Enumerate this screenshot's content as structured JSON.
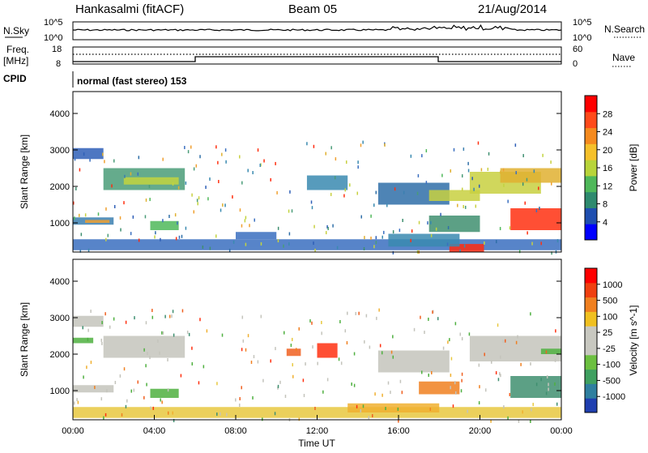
{
  "header": {
    "station": "Hankasalmi (fitACF)",
    "beam": "Beam 05",
    "date": "21/Aug/2014"
  },
  "top_panels": {
    "nsky_label": "N.Sky",
    "nsky_ticks": [
      "10^5",
      "10^0"
    ],
    "nsearch_label": "N.Search",
    "freq_label_line1": "Freq.",
    "freq_label_line2": "[MHz]",
    "freq_ticks": [
      "18",
      "8"
    ],
    "nave_ticks": [
      "60",
      "0"
    ],
    "nave_label": "Nave",
    "cpid_label": "CPID",
    "cpid_text": "normal (fast stereo) 153"
  },
  "chart_data": [
    {
      "type": "heatmap",
      "name": "power",
      "ylabel": "Slant Range [km]",
      "xlabel": "",
      "y_ticks": [
        "4000",
        "3000",
        "2000",
        "1000"
      ],
      "ylim": [
        200,
        4600
      ],
      "colorbar_label": "Power [dB]",
      "colorbar_ticks": [
        "28",
        "24",
        "20",
        "16",
        "12",
        "8",
        "4"
      ],
      "colorbar_colors": [
        "#0000ff",
        "#1f4fb0",
        "#2e8a6e",
        "#4fb85a",
        "#b8d43a",
        "#f5c02a",
        "#f58a1e",
        "#ff4a1a",
        "#ff0000"
      ],
      "bands": [
        {
          "t0": 0.0,
          "t1": 1.5,
          "r0": 2750,
          "r1": 3050,
          "color": "#2f5fb7"
        },
        {
          "t0": 1.5,
          "t1": 5.5,
          "r0": 1900,
          "r1": 2500,
          "color": "#4a9c78"
        },
        {
          "t0": 2.5,
          "t1": 5.2,
          "r0": 2050,
          "r1": 2250,
          "color": "#c2d43f"
        },
        {
          "t0": 0.0,
          "t1": 2.0,
          "r0": 950,
          "r1": 1150,
          "color": "#3b7fb0"
        },
        {
          "t0": 0.6,
          "t1": 1.8,
          "r0": 1000,
          "r1": 1080,
          "color": "#f0a030"
        },
        {
          "t0": 3.8,
          "t1": 5.2,
          "r0": 800,
          "r1": 1050,
          "color": "#4fb85a"
        },
        {
          "t0": 0.0,
          "t1": 24.0,
          "r0": 250,
          "r1": 550,
          "color": "#3a6fc0"
        },
        {
          "t0": 11.5,
          "t1": 13.5,
          "r0": 1900,
          "r1": 2300,
          "color": "#3a8ab0"
        },
        {
          "t0": 15.0,
          "t1": 18.5,
          "r0": 1500,
          "r1": 2100,
          "color": "#2f6fa8"
        },
        {
          "t0": 17.5,
          "t1": 20.0,
          "r0": 1600,
          "r1": 1900,
          "color": "#c8d040"
        },
        {
          "t0": 19.5,
          "t1": 23.0,
          "r0": 1800,
          "r1": 2400,
          "color": "#c8d040"
        },
        {
          "t0": 21.0,
          "t1": 24.0,
          "r0": 2100,
          "r1": 2500,
          "color": "#e0b030"
        },
        {
          "t0": 21.5,
          "t1": 24.0,
          "r0": 800,
          "r1": 1400,
          "color": "#ff3010"
        },
        {
          "t0": 17.5,
          "t1": 20.0,
          "r0": 750,
          "r1": 1200,
          "color": "#3f8f70"
        },
        {
          "t0": 18.5,
          "t1": 20.2,
          "r0": 200,
          "r1": 420,
          "color": "#ff2a10"
        },
        {
          "t0": 15.5,
          "t1": 19.0,
          "r0": 350,
          "r1": 700,
          "color": "#3a8ab0"
        },
        {
          "t0": 8.0,
          "t1": 10.0,
          "r0": 550,
          "r1": 750,
          "color": "#3a6fc0"
        }
      ]
    },
    {
      "type": "heatmap",
      "name": "velocity",
      "ylabel": "Slant Range [km]",
      "xlabel": "Time UT",
      "x_ticks": [
        "00:00",
        "04:00",
        "08:00",
        "12:00",
        "16:00",
        "20:00",
        "00:00"
      ],
      "y_ticks": [
        "4000",
        "3000",
        "2000",
        "1000"
      ],
      "ylim": [
        200,
        4600
      ],
      "colorbar_label": "Velocity [m s^-1]",
      "colorbar_ticks": [
        "1000",
        "500",
        "100",
        "25",
        "-25",
        "-100",
        "-500",
        "-1000"
      ],
      "colorbar_colors": [
        "#1f3fb0",
        "#2f7f9f",
        "#3fa060",
        "#6cc040",
        "#c8c8c0",
        "#c8c8c0",
        "#f0c020",
        "#f08020",
        "#f04010",
        "#ff0000"
      ],
      "bands": [
        {
          "t0": 0.0,
          "t1": 1.5,
          "r0": 2750,
          "r1": 3050,
          "color": "#c4c4bc"
        },
        {
          "t0": 1.5,
          "t1": 5.5,
          "r0": 1900,
          "r1": 2500,
          "color": "#c4c4bc"
        },
        {
          "t0": 0.0,
          "t1": 2.0,
          "r0": 950,
          "r1": 1150,
          "color": "#c4c4bc"
        },
        {
          "t0": 3.8,
          "t1": 5.2,
          "r0": 800,
          "r1": 1050,
          "color": "#4fb040"
        },
        {
          "t0": 0.0,
          "t1": 24.0,
          "r0": 250,
          "r1": 550,
          "color": "#e8c840"
        },
        {
          "t0": 12.0,
          "t1": 13.0,
          "r0": 1900,
          "r1": 2300,
          "color": "#ff3010"
        },
        {
          "t0": 10.5,
          "t1": 11.2,
          "r0": 1950,
          "r1": 2150,
          "color": "#f06020"
        },
        {
          "t0": 15.0,
          "t1": 18.5,
          "r0": 1500,
          "r1": 2100,
          "color": "#c4c4bc"
        },
        {
          "t0": 19.5,
          "t1": 24.0,
          "r0": 1800,
          "r1": 2500,
          "color": "#c4c4bc"
        },
        {
          "t0": 21.5,
          "t1": 24.0,
          "r0": 800,
          "r1": 1400,
          "color": "#3f8f70"
        },
        {
          "t0": 17.0,
          "t1": 19.0,
          "r0": 900,
          "r1": 1250,
          "color": "#f08020"
        },
        {
          "t0": 13.5,
          "t1": 18.0,
          "r0": 400,
          "r1": 650,
          "color": "#f0b030"
        },
        {
          "t0": 0.0,
          "t1": 1.0,
          "r0": 2300,
          "r1": 2450,
          "color": "#4fb040"
        },
        {
          "t0": 23.0,
          "t1": 24.0,
          "r0": 2000,
          "r1": 2150,
          "color": "#4fb040"
        }
      ]
    }
  ]
}
